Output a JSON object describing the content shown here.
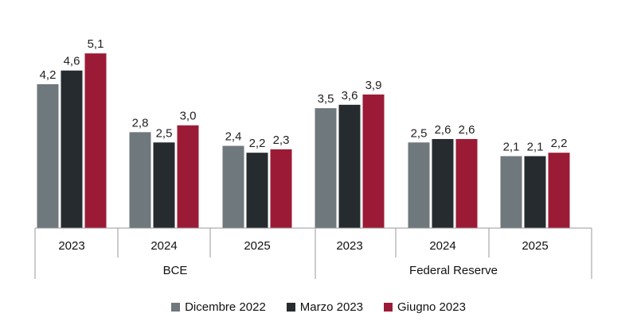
{
  "chart_data": {
    "type": "bar",
    "title": "",
    "xlabel": "",
    "ylabel": "",
    "ylim": [
      0,
      5.5
    ],
    "grid": false,
    "legend_position": "bottom-center",
    "groups": [
      {
        "name": "BCE",
        "categories": [
          "2023",
          "2024",
          "2025"
        ]
      },
      {
        "name": "Federal Reserve",
        "categories": [
          "2023",
          "2024",
          "2025"
        ]
      }
    ],
    "series": [
      {
        "name": "Dicembre 2022",
        "color": "#6f787d",
        "values": [
          4.2,
          2.8,
          2.4,
          3.5,
          2.5,
          2.1
        ],
        "labels": [
          "4,2",
          "2,8",
          "2,4",
          "3,5",
          "2,5",
          "2,1"
        ]
      },
      {
        "name": "Marzo 2023",
        "color": "#262b30",
        "values": [
          4.6,
          2.5,
          2.2,
          3.6,
          2.6,
          2.1
        ],
        "labels": [
          "4,6",
          "2,5",
          "2,2",
          "3,6",
          "2,6",
          "2,1"
        ]
      },
      {
        "name": "Giugno 2023",
        "color": "#9b1b36",
        "values": [
          5.1,
          3.0,
          2.3,
          3.9,
          2.6,
          2.2
        ],
        "labels": [
          "5,1",
          "3,0",
          "2,3",
          "3,9",
          "2,6",
          "2,2"
        ]
      }
    ]
  }
}
